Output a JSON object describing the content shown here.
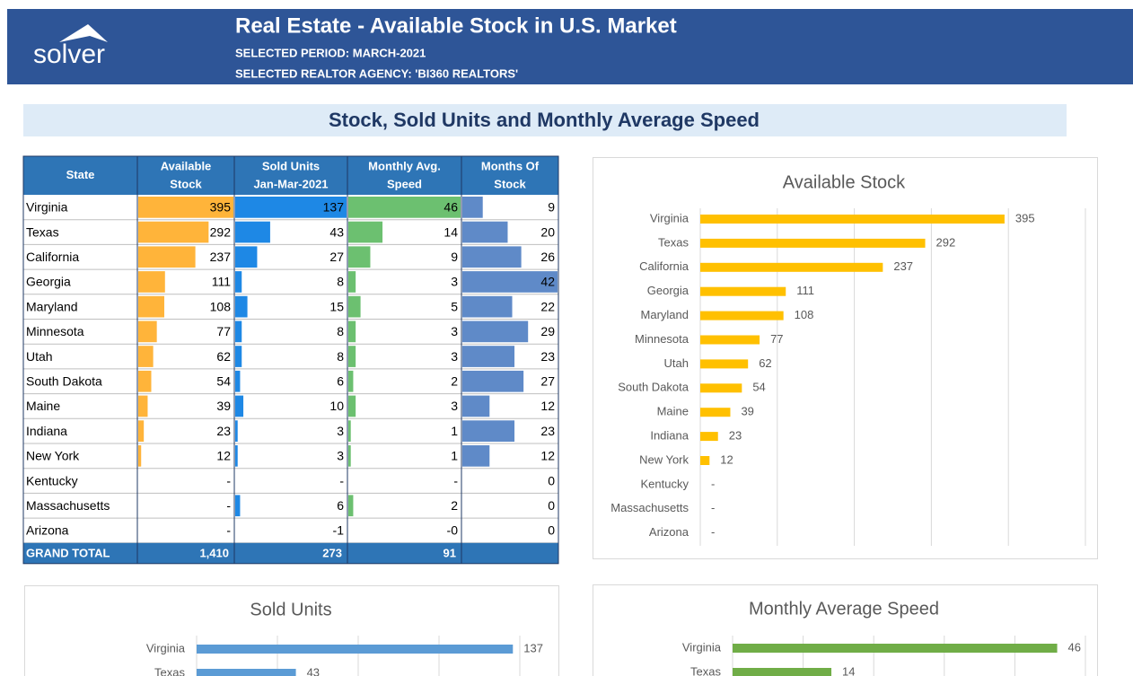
{
  "header": {
    "logo": "solver",
    "title": "Real Estate - Available Stock in U.S. Market",
    "period": "SELECTED PERIOD: MARCH-2021",
    "agency": "SELECTED REALTOR AGENCY: 'BI360 REALTORS'"
  },
  "section_title": "Stock, Sold Units and Monthly Average Speed",
  "table": {
    "columns": [
      [
        "State"
      ],
      [
        "Available",
        "Stock"
      ],
      [
        "Sold Units",
        "Jan-Mar-2021"
      ],
      [
        "Monthly Avg.",
        "Speed"
      ],
      [
        "Months Of",
        "Stock"
      ]
    ],
    "bar_colors": [
      null,
      "#ffb43a",
      "#1e88e5",
      "#6cc070",
      "#5f8ac8"
    ],
    "rows": [
      [
        "Virginia",
        "395",
        "137",
        "46",
        "9"
      ],
      [
        "Texas",
        "292",
        "43",
        "14",
        "20"
      ],
      [
        "California",
        "237",
        "27",
        "9",
        "26"
      ],
      [
        "Georgia",
        "111",
        "8",
        "3",
        "42"
      ],
      [
        "Maryland",
        "108",
        "15",
        "5",
        "22"
      ],
      [
        "Minnesota",
        "77",
        "8",
        "3",
        "29"
      ],
      [
        "Utah",
        "62",
        "8",
        "3",
        "23"
      ],
      [
        "South Dakota",
        "54",
        "6",
        "2",
        "27"
      ],
      [
        "Maine",
        "39",
        "10",
        "3",
        "12"
      ],
      [
        "Indiana",
        "23",
        "3",
        "1",
        "23"
      ],
      [
        "New York",
        "12",
        "3",
        "1",
        "12"
      ],
      [
        "Kentucky",
        "-",
        "-",
        "-",
        "0"
      ],
      [
        "Massachusetts",
        "-",
        "6",
        "2",
        "0"
      ],
      [
        "Arizona",
        "-",
        "-1",
        "-0",
        "0"
      ]
    ],
    "total": [
      "GRAND TOTAL",
      "1,410",
      "273",
      "91",
      ""
    ]
  },
  "chart_data": [
    {
      "type": "hbar",
      "title": "Available Stock",
      "categories": [
        "Virginia",
        "Texas",
        "California",
        "Georgia",
        "Maryland",
        "Minnesota",
        "Utah",
        "South Dakota",
        "Maine",
        "Indiana",
        "New York",
        "Kentucky",
        "Massachusetts",
        "Arizona"
      ],
      "values": [
        395,
        292,
        237,
        111,
        108,
        77,
        62,
        54,
        39,
        23,
        12,
        0,
        0,
        0
      ],
      "value_labels": [
        "395",
        "292",
        "237",
        "111",
        "108",
        "77",
        "62",
        "54",
        "39",
        "23",
        "12",
        "-",
        "-",
        "-"
      ],
      "color": "#ffc000",
      "xlim": [
        0,
        500
      ],
      "xticks": [
        0,
        100,
        200,
        300,
        400,
        500
      ],
      "grid": true
    },
    {
      "type": "hbar",
      "title": "Sold Units",
      "categories": [
        "Virginia",
        "Texas"
      ],
      "values": [
        137,
        43
      ],
      "color": "#5b9bd5",
      "xlim": [
        0,
        140
      ],
      "xticks": [
        0,
        35,
        70,
        105,
        140
      ],
      "grid": true
    },
    {
      "type": "hbar",
      "title": "Monthly Average Speed",
      "categories": [
        "Virginia",
        "Texas"
      ],
      "values": [
        46,
        14
      ],
      "color": "#70ad47",
      "xlim": [
        0,
        50
      ],
      "xticks": [
        0,
        10,
        20,
        30,
        40,
        50
      ],
      "grid": true
    }
  ]
}
